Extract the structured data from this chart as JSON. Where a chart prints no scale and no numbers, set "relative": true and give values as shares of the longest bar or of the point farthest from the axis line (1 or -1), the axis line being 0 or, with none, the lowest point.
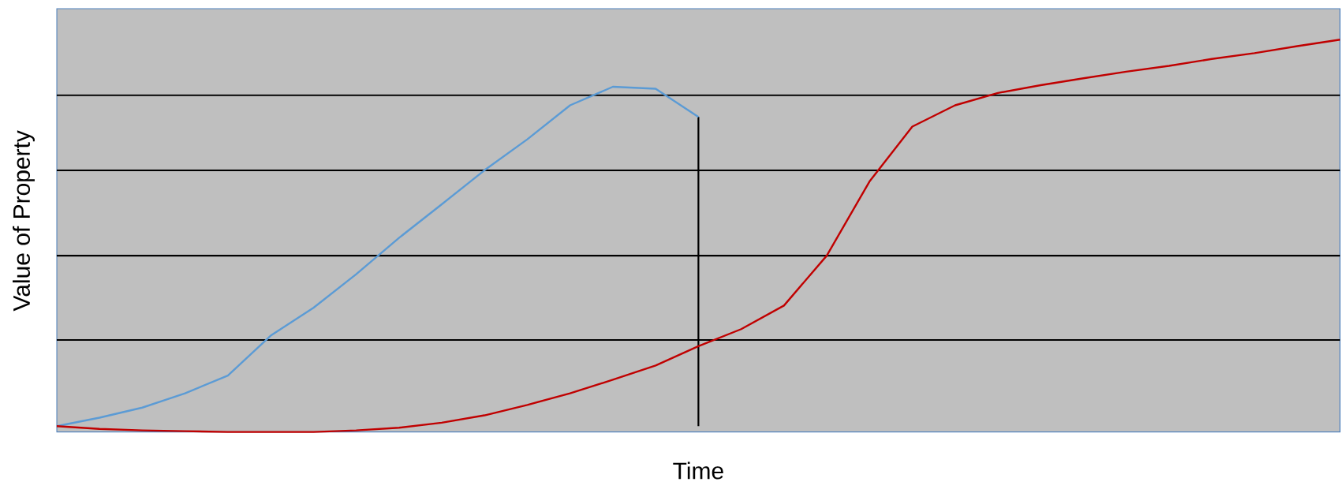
{
  "chart_data": {
    "type": "line",
    "relative": true,
    "xlabel": "Time",
    "ylabel": "Value of Property",
    "categories": [
      null,
      null,
      null,
      null,
      null,
      null,
      null,
      null,
      null,
      null,
      null,
      null,
      null,
      null,
      null,
      null,
      null,
      null,
      null,
      null,
      null,
      null,
      null,
      null,
      null,
      null,
      null,
      null,
      null,
      null,
      null
    ],
    "series": [
      {
        "color": "#5b9bd5",
        "values": [
          0,
          0.022,
          0.048,
          0.085,
          0.131,
          0.234,
          0.306,
          0.393,
          0.487,
          0.574,
          0.662,
          0.742,
          0.83,
          0.878,
          0.873,
          0.8,
          null,
          null,
          null,
          null,
          null,
          null,
          null,
          null,
          null,
          null,
          null,
          null,
          null,
          null,
          null
        ]
      },
      {
        "color": "#c00000",
        "values": [
          0,
          -0.007,
          -0.011,
          -0.013,
          -0.015,
          -0.015,
          -0.015,
          -0.011,
          -0.004,
          0.009,
          0.028,
          0.055,
          0.085,
          0.12,
          0.157,
          0.207,
          0.251,
          0.312,
          0.441,
          0.633,
          0.775,
          0.83,
          0.862,
          0.882,
          0.9,
          0.917,
          0.932,
          0.95,
          0.965,
          0.983,
          1
        ]
      }
    ],
    "ref_lines": [
      {
        "axis": "y",
        "value": 0.223,
        "color": "#000000"
      },
      {
        "axis": "y",
        "value": 0.441,
        "color": "#000000"
      },
      {
        "axis": "y",
        "value": 0.662,
        "color": "#000000"
      },
      {
        "axis": "y",
        "value": 0.856,
        "color": "#000000"
      }
    ],
    "legend": false,
    "marker": "none",
    "line_style": "solid"
  }
}
